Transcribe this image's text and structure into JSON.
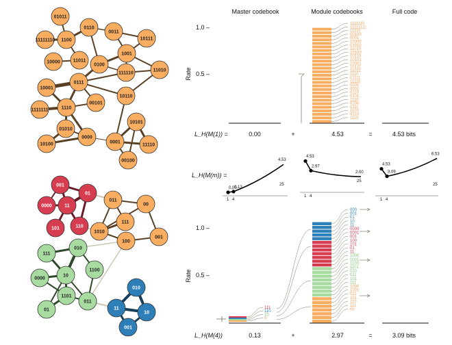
{
  "headers": {
    "master": "Master codebook",
    "module": "Module codebooks",
    "full": "Full code"
  },
  "yaxis": {
    "label": "Rate",
    "ticks": [
      "1.0 –",
      "0.5 –"
    ]
  },
  "colors": {
    "orange": "#f9ad61",
    "red": "#d63d50",
    "green": "#a7dba0",
    "blue": "#2e7fb8",
    "link_dark": "#5a4126",
    "link_gray": "#cfc5b1",
    "codeword_orange": "#f4a15c"
  },
  "top_network": {
    "nodes": [
      {
        "label": "01011"
      },
      {
        "label": "0110"
      },
      {
        "label": "1100"
      },
      {
        "label": "11111110"
      },
      {
        "label": "0011"
      },
      {
        "label": "10111"
      },
      {
        "label": "10000"
      },
      {
        "label": "11011"
      },
      {
        "label": "1001"
      },
      {
        "label": "0100"
      },
      {
        "label": "111110"
      },
      {
        "label": "11010"
      },
      {
        "label": "10001"
      },
      {
        "label": "0111"
      },
      {
        "label": "10110"
      },
      {
        "label": "1111111"
      },
      {
        "label": "1110"
      },
      {
        "label": "00101"
      },
      {
        "label": "01010"
      },
      {
        "label": "10101"
      },
      {
        "label": "10100"
      },
      {
        "label": "0000"
      },
      {
        "label": "0001"
      },
      {
        "label": "11110"
      },
      {
        "label": "00100"
      }
    ]
  },
  "bottom_network": {
    "nodes": [
      {
        "label": "001"
      },
      {
        "label": "01"
      },
      {
        "label": "0000"
      },
      {
        "label": "11"
      },
      {
        "label": "101"
      },
      {
        "label": "110"
      },
      {
        "label": "011"
      },
      {
        "label": "00"
      },
      {
        "label": "111"
      },
      {
        "label": "1010"
      },
      {
        "label": "100"
      },
      {
        "label": "001"
      },
      {
        "label": "111"
      },
      {
        "label": "010"
      },
      {
        "label": "1100"
      },
      {
        "label": "0000"
      },
      {
        "label": "10"
      },
      {
        "label": "1101"
      },
      {
        "label": "011"
      },
      {
        "label": "01"
      },
      {
        "label": "010"
      },
      {
        "label": "11"
      },
      {
        "label": "10"
      },
      {
        "label": "001"
      }
    ]
  },
  "top_codewords": [
    "1111110",
    "11111111",
    "11110",
    "00100",
    "0001",
    "10000",
    "01010",
    "11010",
    "10100",
    "10110",
    "10101",
    "10001",
    "10111",
    "11011",
    "1110",
    "01111",
    "11110",
    "0000",
    "0001",
    "0110",
    "0101",
    "1110",
    "0100",
    "0111",
    "1100",
    "0110",
    "1110"
  ],
  "bottom_codewords": [
    {
      "text": "000",
      "group": "blue"
    },
    {
      "text": "001",
      "group": "blue"
    },
    {
      "text": "01",
      "group": "blue"
    },
    {
      "text": "10",
      "group": "blue"
    },
    {
      "text": "11",
      "group": "blue"
    },
    {
      "text": "0000",
      "group": "red"
    },
    {
      "text": "0001",
      "group": "red"
    },
    {
      "text": "001",
      "group": "red"
    },
    {
      "text": "100",
      "group": "red"
    },
    {
      "text": "101",
      "group": "red"
    },
    {
      "text": "01",
      "group": "red"
    },
    {
      "text": "11",
      "group": "red"
    },
    {
      "text": "1000",
      "group": "green"
    },
    {
      "text": "0001",
      "group": "green"
    },
    {
      "text": "1100",
      "group": "green"
    },
    {
      "text": "1101",
      "group": "green"
    },
    {
      "text": "010",
      "group": "green"
    },
    {
      "text": "011",
      "group": "green"
    },
    {
      "text": "101",
      "group": "green"
    },
    {
      "text": "111",
      "group": "green"
    },
    {
      "text": "1000",
      "group": "orange"
    },
    {
      "text": "1001",
      "group": "orange"
    },
    {
      "text": "011",
      "group": "orange"
    },
    {
      "text": "101",
      "group": "orange"
    },
    {
      "text": "110",
      "group": "orange"
    },
    {
      "text": "111",
      "group": "orange"
    },
    {
      "text": "00",
      "group": "orange"
    }
  ],
  "master_small_codewords": [
    {
      "text": "111",
      "group": "red"
    },
    {
      "text": "110",
      "group": "blue"
    },
    {
      "text": "10",
      "group": "green"
    },
    {
      "text": "0",
      "group": "orange"
    }
  ],
  "row_top": {
    "label": "L_H(M(1)) =",
    "master": "0.00",
    "plus": "+",
    "module": "4.53",
    "equals": "=",
    "full": "4.53 bits"
  },
  "row_bottom": {
    "label": "L_H(M(4))",
    "master": "0.13",
    "plus": "+",
    "module": "2.97",
    "equals": "=",
    "full": "3.09 bits"
  },
  "curve_row": {
    "label": "L_H(M(m)) =",
    "master": {
      "values": [
        0.0,
        0.13,
        4.53
      ],
      "annot": [
        "0.00",
        "0.13",
        "4.53"
      ],
      "ticks": [
        "1",
        "4",
        "25"
      ]
    },
    "module": {
      "values": [
        4.53,
        2.97,
        2.0
      ],
      "annot": [
        "4.53",
        "2.97",
        "2.00"
      ],
      "ticks": [
        "1",
        "4",
        "25"
      ]
    },
    "full": {
      "values": [
        4.53,
        3.09,
        6.53
      ],
      "annot": [
        "4.53",
        "3.09",
        "6.53"
      ],
      "ticks": [
        "1",
        "4",
        "25"
      ]
    }
  }
}
